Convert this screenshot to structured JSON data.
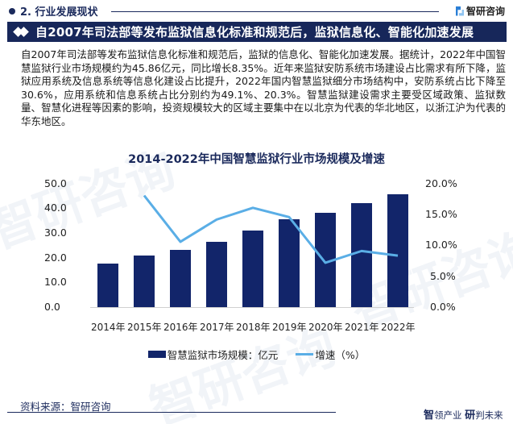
{
  "header": {
    "section_title": "2. 行业发展现状",
    "logo_text": "智研咨询",
    "banner_title": "自2007年司法部等发布监狱信息化标准和规范后，监狱信息化、智能化加速发展"
  },
  "body_text": "自2007年司法部等发布监狱信息化标准和规范后，监狱的信息化、智能化加速发展。据统计，2022年中国智慧监狱行业市场规模约为45.86亿元，同比增长8.35%。近年来监狱安防系统市场建设占比需求有所下降，监狱应用系统及信息系统等信息化建设占比提升，2022年国内智慧监狱细分市场结构中，安防系统占比下降至30.6%，应用系统和信息系统占比分别约为49.1%、20.3%。智慧监狱建设需求主要受区域政策、监狱数量、智慧化进程等因素的影响，投资规模较大的区域主要集中在以北京为代表的华北地区，以浙江沪为代表的华东地区。",
  "chart": {
    "title": "2014-2022年中国智慧监狱行业市场规模及增速",
    "left_ticks": [
      "50.0",
      "40.0",
      "30.0",
      "20.0",
      "10.0",
      "0.0"
    ],
    "right_ticks": [
      "20.0%",
      "15.0%",
      "10.0%",
      "5.0%",
      "0.0%"
    ],
    "x_labels": [
      "2014年",
      "2015年",
      "2016年",
      "2017年",
      "2018年",
      "2019年",
      "2020年",
      "2021年",
      "2022年"
    ],
    "legend": {
      "bar_label": "智慧监狱市场规模：亿元",
      "line_label": "增速（%）"
    },
    "colors": {
      "bar": "#12256a",
      "line": "#5aaee6"
    }
  },
  "chart_data": {
    "type": "bar",
    "title": "2014-2022年中国智慧监狱行业市场规模及增速",
    "categories": [
      "2014年",
      "2015年",
      "2016年",
      "2017年",
      "2018年",
      "2019年",
      "2020年",
      "2021年",
      "2022年"
    ],
    "series": [
      {
        "name": "智慧监狱市场规模：亿元",
        "type": "bar",
        "axis": "left",
        "values": [
          17.6,
          21.0,
          23.3,
          26.6,
          31.0,
          35.6,
          38.2,
          42.3,
          45.86
        ]
      },
      {
        "name": "增速（%）",
        "type": "line",
        "axis": "right",
        "values": [
          null,
          18.1,
          10.6,
          14.2,
          16.1,
          14.6,
          7.2,
          9.1,
          8.35
        ]
      }
    ],
    "xlabel": "",
    "ylabel": "",
    "ylim": [
      0,
      50
    ],
    "y2lim": [
      0,
      20
    ],
    "y2_format": "percent",
    "grid": false,
    "legend_position": "bottom"
  },
  "footer": {
    "source": "资料来源：智研咨询",
    "slogan_bold1": "智",
    "slogan_rest1": "领产业 ",
    "slogan_bold2": "研",
    "slogan_rest2": "判未来"
  }
}
